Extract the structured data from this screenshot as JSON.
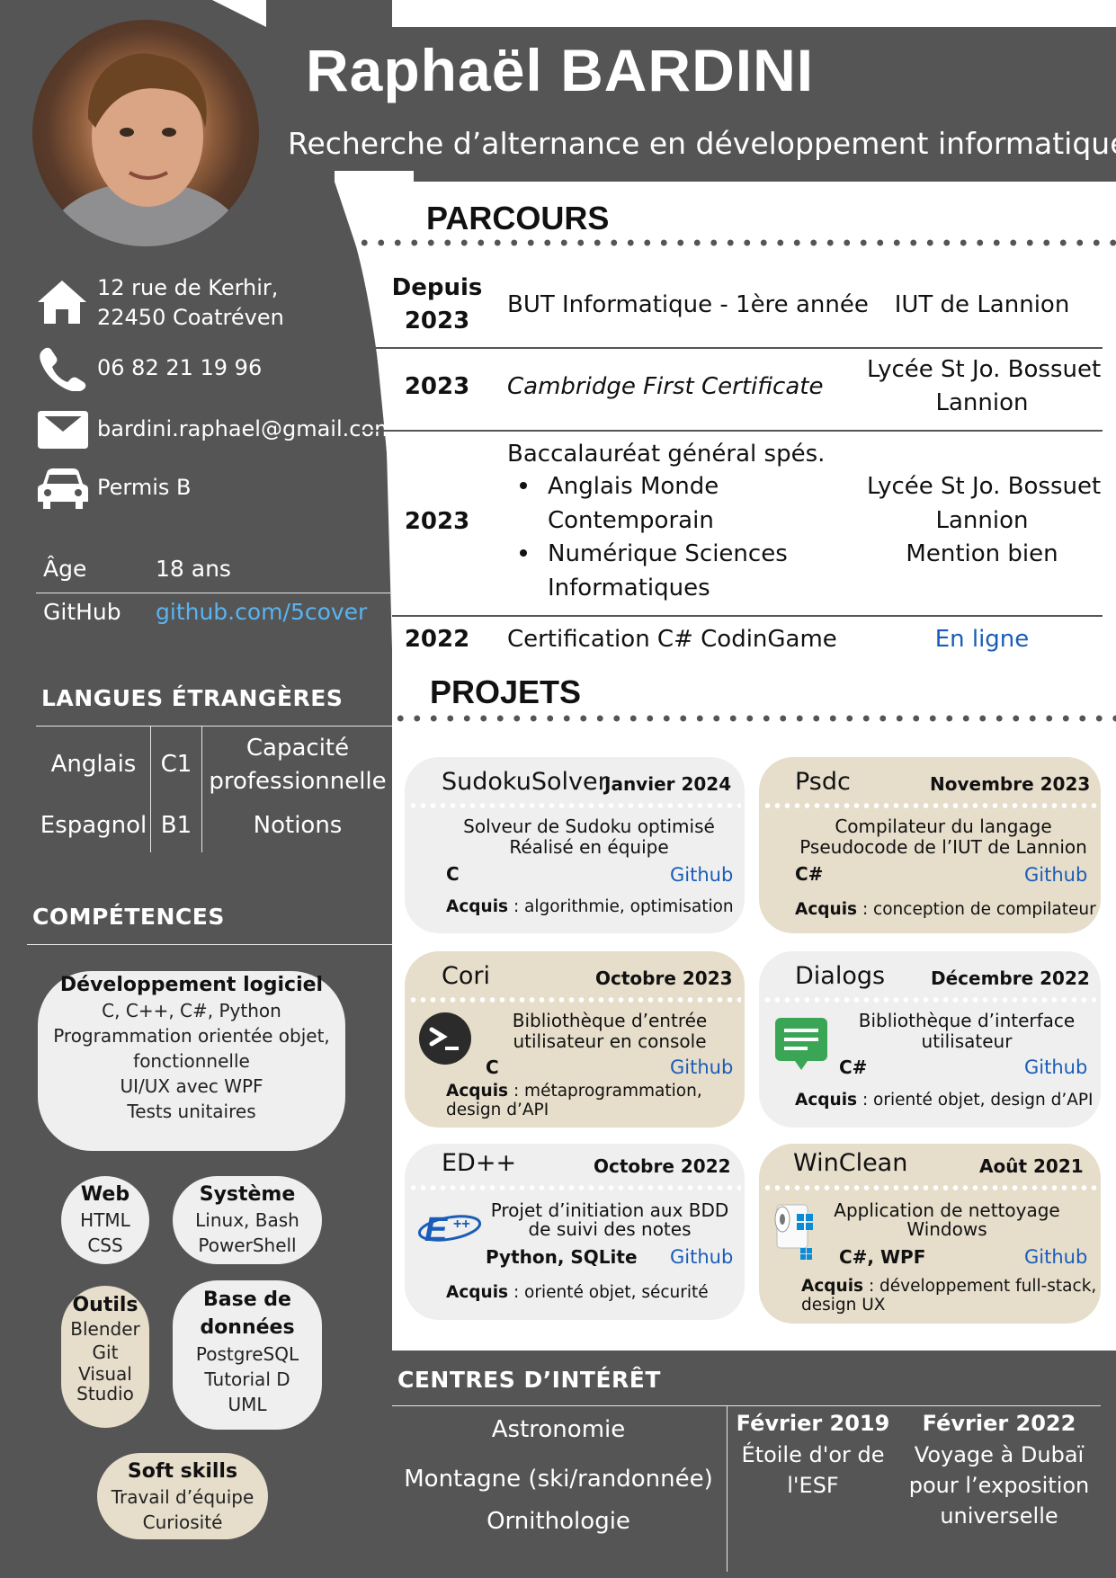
{
  "header": {
    "name": "Raphaël BARDINI",
    "subtitle": "Recherche d’alternance en développement informatique"
  },
  "contact": {
    "address_line1": "12 rue de Kerhir,",
    "address_line2": "22450 Coatréven",
    "phone": "06 82 21 19 96",
    "email": "bardini.raphael@gmail.com",
    "license": "Permis B"
  },
  "info": {
    "age_label": "Âge",
    "age_value": "18 ans",
    "github_label": "GitHub",
    "github_value": "github.com/5cover"
  },
  "languages": {
    "title": "LANGUES ÉTRANGÈRES",
    "rows": [
      {
        "lang": "Anglais",
        "level": "C1",
        "desc_line1": "Capacité",
        "desc_line2": "professionnelle"
      },
      {
        "lang": "Espagnol",
        "level": "B1",
        "desc_line1": "Notions",
        "desc_line2": ""
      }
    ]
  },
  "skills": {
    "title": "COMPÉTENCES",
    "dev": {
      "title": "Développement logiciel",
      "lines": [
        "C, C++, C#, Python",
        "Programmation orientée objet,",
        "fonctionnelle",
        "UI/UX avec WPF",
        "Tests unitaires"
      ]
    },
    "web": {
      "title": "Web",
      "lines": [
        "HTML",
        "CSS"
      ]
    },
    "system": {
      "title": "Système",
      "lines": [
        "Linux, Bash",
        "PowerShell"
      ]
    },
    "tools": {
      "title": "Outils",
      "lines": [
        "Blender",
        "Git",
        "Visual",
        "Studio"
      ]
    },
    "db": {
      "title_line1": "Base de",
      "title_line2": "données",
      "lines": [
        "PostgreSQL",
        "Tutorial D",
        "UML"
      ]
    },
    "soft": {
      "title": "Soft skills",
      "lines": [
        "Travail d’équipe",
        "Curiosité"
      ]
    }
  },
  "parcours": {
    "title": "PARCOURS",
    "rows": [
      {
        "year_line1": "Depuis",
        "year_line2": "2023",
        "title": "BUT Informatique - 1ère année",
        "place_line1": "IUT de Lannion"
      },
      {
        "year_line1": "2023",
        "title": "Cambridge First Certificate",
        "place_line1": "Lycée St Jo. Bossuet",
        "place_line2": "Lannion"
      },
      {
        "year_line1": "2023",
        "title": "Baccalauréat général spés.",
        "bullet1_line1": "Anglais Monde",
        "bullet1_line2": "Contemporain",
        "bullet2_line1": "Numérique Sciences",
        "bullet2_line2": "Informatiques",
        "place_line1": "Lycée St Jo. Bossuet",
        "place_line2": "Lannion",
        "place_line3": "Mention bien"
      },
      {
        "year_line1": "2022",
        "title": "Certification C# CodinGame",
        "place_line1": "En ligne"
      }
    ]
  },
  "projets": {
    "title": "PROJETS",
    "cards": [
      {
        "title": "SudokuSolver",
        "date": "Janvier 2024",
        "desc_line1": "Solveur de Sudoku optimisé",
        "desc_line2": "Réalisé en équipe",
        "lang": "C",
        "link": "Github",
        "acq_label": "Acquis",
        "acq_line1": " : algorithmie, optimisation",
        "acq_line2": ""
      },
      {
        "title": "Psdc",
        "date": "Novembre 2023",
        "desc_line1": "Compilateur du langage",
        "desc_line2": "Pseudocode de l’IUT de Lannion",
        "lang": "C#",
        "link": "Github",
        "acq_label": "Acquis",
        "acq_line1": " : conception de compilateur",
        "acq_line2": ""
      },
      {
        "title": "Cori",
        "date": "Octobre 2023",
        "desc_line1": "Bibliothèque d’entrée",
        "desc_line2": "utilisateur en console",
        "lang": "C",
        "link": "Github",
        "acq_label": "Acquis",
        "acq_line1": " : métaprogrammation,",
        "acq_line2": "design d’API"
      },
      {
        "title": "Dialogs",
        "date": "Décembre 2022",
        "desc_line1": "Bibliothèque d’interface",
        "desc_line2": "utilisateur",
        "lang": "C#",
        "link": "Github",
        "acq_label": "Acquis",
        "acq_line1": " : orienté objet, design d’API",
        "acq_line2": ""
      },
      {
        "title": "ED++",
        "date": "Octobre 2022",
        "desc_line1": "Projet d’initiation aux BDD",
        "desc_line2": "de suivi des notes",
        "lang": "Python, SQLite",
        "link": "Github",
        "acq_label": "Acquis",
        "acq_line1": " : orienté objet, sécurité",
        "acq_line2": ""
      },
      {
        "title": "WinClean",
        "date": "Août 2021",
        "desc_line1": "Application de nettoyage",
        "desc_line2": "Windows",
        "lang": "C#, WPF",
        "link": "Github",
        "acq_label": "Acquis",
        "acq_line1": " : développement full-stack,",
        "acq_line2": "design UX"
      }
    ]
  },
  "interests": {
    "title": "CENTRES D’INTÉRÊT",
    "items": [
      "Astronomie",
      "Montagne (ski/randonnée)",
      "Ornithologie"
    ],
    "events": [
      {
        "date": "Février 2019",
        "line1": "Étoile d'or de",
        "line2": "l'ESF",
        "line3": ""
      },
      {
        "date": "Février 2022",
        "line1": "Voyage à Dubaï",
        "line2": "pour l’exposition",
        "line3": "universelle"
      }
    ]
  },
  "colors": {
    "dark_gray": "#555555",
    "card_gray": "#efefef",
    "card_beige": "#e6ddca",
    "link_blue": "#1a5db8",
    "github_blue": "#5ab4f0"
  }
}
